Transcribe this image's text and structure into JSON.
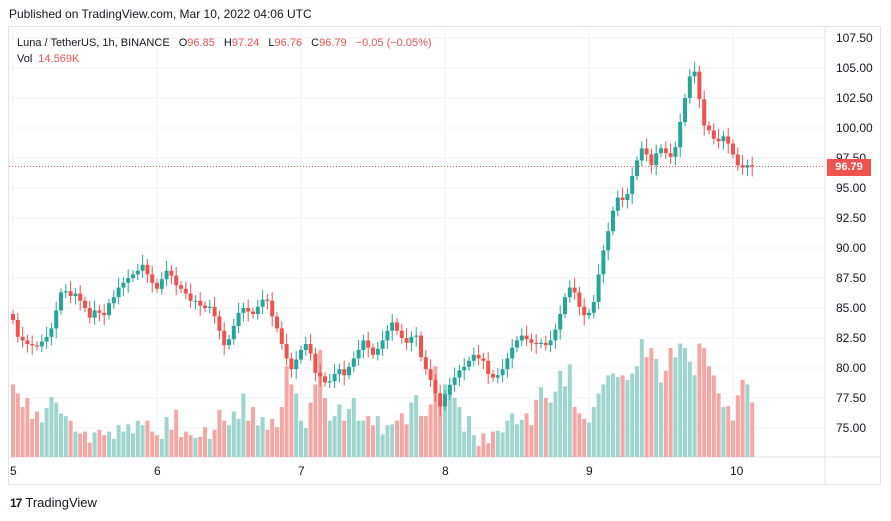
{
  "header": {
    "published": "Published on TradingView.com, Mar 10, 2022 04:06 UTC"
  },
  "legend": {
    "symbol": "Luna / TetherUS, 1h, BINANCE",
    "o_label": "O",
    "o_value": "96.85",
    "h_label": "H",
    "h_value": "97.24",
    "l_label": "L",
    "l_value": "96.76",
    "c_label": "C",
    "c_value": "96.79",
    "change": "−0.05 (−0.05%)",
    "vol_label": "Vol",
    "vol_value": "14.569K"
  },
  "last_price_label": "96.79",
  "brand": {
    "name": "TradingView"
  },
  "colors": {
    "up": "#26a69a",
    "down": "#ef5350",
    "vol_up": "#9fd5cf",
    "vol_down": "#f5a7a6",
    "grid": "#f0f3fa",
    "axis_text": "#131722"
  },
  "chart_data": {
    "type": "candlestick",
    "title": "Luna / TetherUS, 1h, BINANCE",
    "ylim": [
      72.5,
      108.5
    ],
    "yticks": [
      75.0,
      77.5,
      80.0,
      82.5,
      85.0,
      87.5,
      90.0,
      92.5,
      95.0,
      97.5,
      100.0,
      102.5,
      105.0,
      107.5
    ],
    "ytick_labels": [
      "75.00",
      "77.50",
      "80.00",
      "82.50",
      "85.00",
      "87.50",
      "90.00",
      "92.50",
      "95.00",
      "97.50",
      "100.00",
      "102.50",
      "105.00",
      "107.50"
    ],
    "xticks": [
      {
        "label": "5",
        "index": 0
      },
      {
        "label": "6",
        "index": 30
      },
      {
        "label": "7",
        "index": 60
      },
      {
        "label": "8",
        "index": 90
      },
      {
        "label": "9",
        "index": 120
      },
      {
        "label": "10",
        "index": 150
      }
    ],
    "last_price": 96.79,
    "closes": [
      84.0,
      82.6,
      82.3,
      82.0,
      81.9,
      81.8,
      82.2,
      82.6,
      83.3,
      84.8,
      86.3,
      86.4,
      86.0,
      86.2,
      85.6,
      85.0,
      84.2,
      84.8,
      84.6,
      84.4,
      85.4,
      85.9,
      86.7,
      87.1,
      87.5,
      87.8,
      88.1,
      88.6,
      87.8,
      87.1,
      86.6,
      87.4,
      88.1,
      87.7,
      86.9,
      86.6,
      86.2,
      85.6,
      85.6,
      85.2,
      85.0,
      85.1,
      84.3,
      83.1,
      81.9,
      82.4,
      83.5,
      84.6,
      85.0,
      84.7,
      84.5,
      85.1,
      85.7,
      85.6,
      84.3,
      83.3,
      82.0,
      80.8,
      79.9,
      80.7,
      81.5,
      82.0,
      81.2,
      79.6,
      79.3,
      78.8,
      78.9,
      79.5,
      79.9,
      79.4,
      80.1,
      80.8,
      81.5,
      82.3,
      81.7,
      81.1,
      81.6,
      82.3,
      83.1,
      83.8,
      83.1,
      82.5,
      82.1,
      82.6,
      82.7,
      80.9,
      79.9,
      79.0,
      77.9,
      76.8,
      77.8,
      78.6,
      79.2,
      79.8,
      80.1,
      80.6,
      81.1,
      80.8,
      80.6,
      79.5,
      79.2,
      79.4,
      79.9,
      80.8,
      81.7,
      82.3,
      82.7,
      82.4,
      82.1,
      82.0,
      82.1,
      81.9,
      82.3,
      83.2,
      84.5,
      85.9,
      86.7,
      86.3,
      85.1,
      84.4,
      84.6,
      85.5,
      87.8,
      89.8,
      91.4,
      93.1,
      94.2,
      94.0,
      94.5,
      96.0,
      97.3,
      98.3,
      97.8,
      96.9,
      97.9,
      98.3,
      97.9,
      97.6,
      98.4,
      100.5,
      102.5,
      104.3,
      104.7,
      102.4,
      100.2,
      99.8,
      99.1,
      98.9,
      99.3,
      98.7,
      97.8,
      96.9,
      96.7,
      96.9,
      96.79
    ],
    "volumes": [
      80,
      70,
      55,
      65,
      42,
      50,
      38,
      54,
      66,
      60,
      48,
      45,
      40,
      28,
      26,
      28,
      16,
      27,
      30,
      24,
      28,
      20,
      35,
      28,
      36,
      26,
      40,
      35,
      40,
      28,
      24,
      20,
      44,
      30,
      52,
      22,
      28,
      24,
      21,
      22,
      33,
      20,
      30,
      52,
      40,
      35,
      50,
      42,
      70,
      40,
      55,
      35,
      44,
      30,
      42,
      33,
      55,
      100,
      80,
      70,
      40,
      32,
      60,
      80,
      118,
      65,
      40,
      45,
      58,
      40,
      53,
      65,
      40,
      40,
      45,
      35,
      45,
      25,
      35,
      36,
      40,
      48,
      36,
      60,
      68,
      45,
      45,
      58,
      100,
      65,
      80,
      75,
      65,
      55,
      28,
      45,
      24,
      12,
      26,
      15,
      28,
      29,
      27,
      40,
      48,
      36,
      41,
      48,
      35,
      63,
      77,
      65,
      60,
      72,
      95,
      78,
      102,
      55,
      48,
      42,
      38,
      55,
      70,
      80,
      90,
      92,
      88,
      90,
      85,
      92,
      100,
      130,
      110,
      120,
      108,
      82,
      95,
      120,
      110,
      125,
      120,
      105,
      90,
      125,
      120,
      100,
      90,
      70,
      55,
      56,
      40,
      68,
      85,
      80,
      60
    ]
  }
}
